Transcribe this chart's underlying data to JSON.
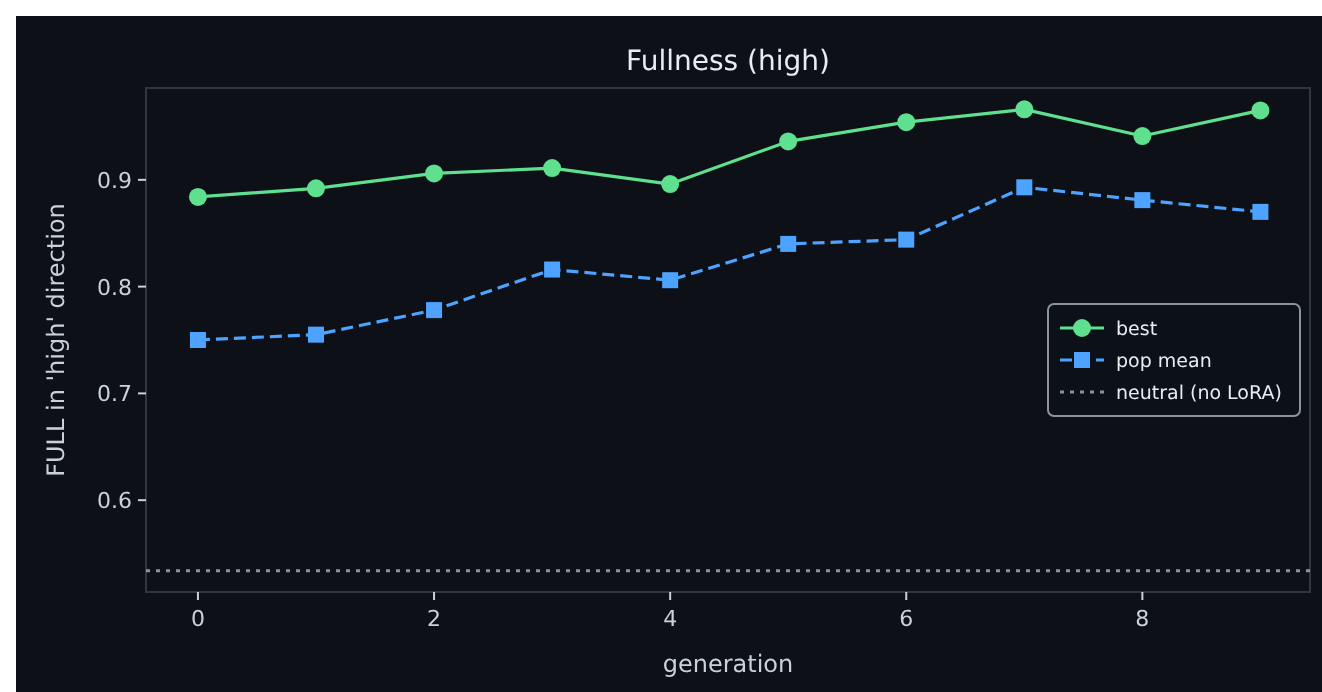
{
  "chart_data": {
    "type": "line",
    "title": "Fullness (high)",
    "xlabel": "generation",
    "ylabel": "FULL in 'high' direction",
    "x": [
      0,
      1,
      2,
      3,
      4,
      5,
      6,
      7,
      8,
      9
    ],
    "series": [
      {
        "name": "best",
        "color": "#5fe08f",
        "marker": "circle",
        "line_style": "solid",
        "values": [
          0.884,
          0.892,
          0.906,
          0.911,
          0.896,
          0.936,
          0.954,
          0.966,
          0.941,
          0.965
        ]
      },
      {
        "name": "pop mean",
        "color": "#4da3ff",
        "marker": "square",
        "line_style": "dashed",
        "values": [
          0.75,
          0.755,
          0.778,
          0.816,
          0.806,
          0.84,
          0.844,
          0.893,
          0.881,
          0.87
        ]
      }
    ],
    "ref_lines": [
      {
        "axis": "y",
        "value": 0.534,
        "label": "neutral (no LoRA)",
        "color": "#8b949e",
        "line_style": "dotted"
      }
    ],
    "xlim": [
      -0.44,
      9.42
    ],
    "ylim": [
      0.514,
      0.986
    ],
    "xticks": [
      0,
      2,
      4,
      6,
      8
    ],
    "yticks": [
      0.6,
      0.7,
      0.8,
      0.9
    ],
    "grid": false,
    "legend": "right"
  }
}
